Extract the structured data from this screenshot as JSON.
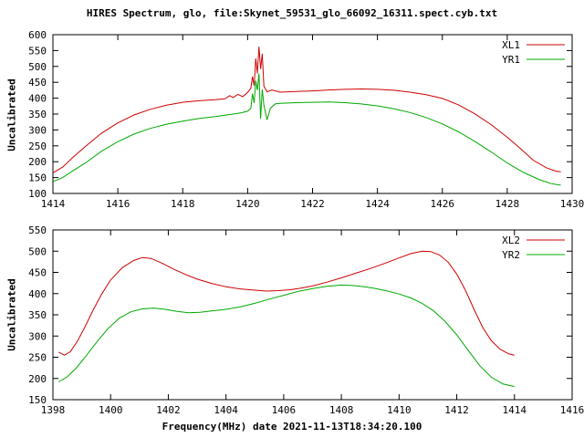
{
  "title": "HIRES Spectrum, glo, file:Skynet_59531_glo_66092_16311.spect.cyb.txt",
  "xlabel": "Frequency(MHz) date 2021-11-13T18:34:20.100",
  "colors": {
    "axis": "#000000",
    "xl": "#cc0000",
    "yr": "#00a800",
    "background": "#ffffff"
  },
  "chart_data": [
    {
      "type": "line",
      "title": "",
      "ylabel": "Uncalibrated",
      "xlim": [
        1414,
        1430
      ],
      "xtick_step": 2,
      "ylim": [
        100,
        600
      ],
      "ytick_step": 50,
      "grid": false,
      "legend_position": "top-right",
      "series": [
        {
          "name": "XL1",
          "color": "#cc0000",
          "points": [
            [
              1414.0,
              165
            ],
            [
              1414.3,
              183
            ],
            [
              1414.6,
              212
            ],
            [
              1415.0,
              248
            ],
            [
              1415.5,
              290
            ],
            [
              1416.0,
              322
            ],
            [
              1416.5,
              347
            ],
            [
              1417.0,
              365
            ],
            [
              1417.5,
              378
            ],
            [
              1418.0,
              387
            ],
            [
              1418.5,
              392
            ],
            [
              1419.0,
              395
            ],
            [
              1419.3,
              398
            ],
            [
              1419.45,
              408
            ],
            [
              1419.55,
              402
            ],
            [
              1419.7,
              412
            ],
            [
              1419.85,
              405
            ],
            [
              1420.0,
              418
            ],
            [
              1420.1,
              432
            ],
            [
              1420.15,
              468
            ],
            [
              1420.2,
              440
            ],
            [
              1420.25,
              525
            ],
            [
              1420.3,
              478
            ],
            [
              1420.35,
              562
            ],
            [
              1420.4,
              492
            ],
            [
              1420.45,
              540
            ],
            [
              1420.5,
              438
            ],
            [
              1420.6,
              420
            ],
            [
              1420.75,
              426
            ],
            [
              1421.0,
              419
            ],
            [
              1421.5,
              421
            ],
            [
              1422.0,
              423
            ],
            [
              1422.5,
              426
            ],
            [
              1423.0,
              428
            ],
            [
              1423.5,
              429
            ],
            [
              1424.0,
              428
            ],
            [
              1424.5,
              425
            ],
            [
              1425.0,
              419
            ],
            [
              1425.5,
              411
            ],
            [
              1426.0,
              399
            ],
            [
              1426.5,
              379
            ],
            [
              1427.0,
              351
            ],
            [
              1427.5,
              317
            ],
            [
              1428.0,
              277
            ],
            [
              1428.4,
              242
            ],
            [
              1428.8,
              205
            ],
            [
              1429.2,
              181
            ],
            [
              1429.5,
              170
            ],
            [
              1429.65,
              168
            ]
          ]
        },
        {
          "name": "YR1",
          "color": "#00a800",
          "points": [
            [
              1414.0,
              137
            ],
            [
              1414.3,
              150
            ],
            [
              1414.6,
              170
            ],
            [
              1415.0,
              196
            ],
            [
              1415.5,
              233
            ],
            [
              1416.0,
              263
            ],
            [
              1416.5,
              287
            ],
            [
              1417.0,
              305
            ],
            [
              1417.5,
              318
            ],
            [
              1418.0,
              328
            ],
            [
              1418.5,
              336
            ],
            [
              1419.0,
              342
            ],
            [
              1419.5,
              349
            ],
            [
              1419.8,
              354
            ],
            [
              1420.0,
              359
            ],
            [
              1420.1,
              368
            ],
            [
              1420.15,
              415
            ],
            [
              1420.2,
              385
            ],
            [
              1420.25,
              455
            ],
            [
              1420.3,
              425
            ],
            [
              1420.35,
              478
            ],
            [
              1420.4,
              335
            ],
            [
              1420.45,
              428
            ],
            [
              1420.5,
              378
            ],
            [
              1420.6,
              332
            ],
            [
              1420.7,
              368
            ],
            [
              1420.85,
              382
            ],
            [
              1421.0,
              384
            ],
            [
              1421.5,
              386
            ],
            [
              1422.0,
              387
            ],
            [
              1422.5,
              388
            ],
            [
              1423.0,
              386
            ],
            [
              1423.5,
              382
            ],
            [
              1424.0,
              376
            ],
            [
              1424.5,
              367
            ],
            [
              1425.0,
              355
            ],
            [
              1425.5,
              339
            ],
            [
              1426.0,
              319
            ],
            [
              1426.5,
              294
            ],
            [
              1427.0,
              264
            ],
            [
              1427.5,
              231
            ],
            [
              1428.0,
              196
            ],
            [
              1428.5,
              166
            ],
            [
              1429.0,
              143
            ],
            [
              1429.35,
              131
            ],
            [
              1429.65,
              126
            ]
          ]
        }
      ]
    },
    {
      "type": "line",
      "title": "",
      "ylabel": "Uncalibrated",
      "xlim": [
        1398,
        1416
      ],
      "xtick_step": 2,
      "ylim": [
        150,
        550
      ],
      "ytick_step": 50,
      "grid": false,
      "legend_position": "top-right",
      "series": [
        {
          "name": "XL2",
          "color": "#cc0000",
          "points": [
            [
              1398.2,
              262
            ],
            [
              1398.4,
              255
            ],
            [
              1398.6,
              263
            ],
            [
              1398.85,
              288
            ],
            [
              1399.1,
              320
            ],
            [
              1399.4,
              362
            ],
            [
              1399.7,
              400
            ],
            [
              1400.0,
              432
            ],
            [
              1400.4,
              461
            ],
            [
              1400.8,
              478
            ],
            [
              1401.1,
              485
            ],
            [
              1401.4,
              483
            ],
            [
              1401.8,
              471
            ],
            [
              1402.2,
              457
            ],
            [
              1402.6,
              445
            ],
            [
              1403.0,
              434
            ],
            [
              1403.5,
              424
            ],
            [
              1404.0,
              416
            ],
            [
              1404.5,
              411
            ],
            [
              1405.0,
              408
            ],
            [
              1405.4,
              406
            ],
            [
              1405.8,
              407
            ],
            [
              1406.2,
              409
            ],
            [
              1406.6,
              413
            ],
            [
              1407.0,
              418
            ],
            [
              1407.5,
              427
            ],
            [
              1408.0,
              437
            ],
            [
              1408.5,
              448
            ],
            [
              1409.0,
              459
            ],
            [
              1409.5,
              471
            ],
            [
              1410.0,
              484
            ],
            [
              1410.4,
              494
            ],
            [
              1410.8,
              500
            ],
            [
              1411.1,
              499
            ],
            [
              1411.4,
              491
            ],
            [
              1411.7,
              474
            ],
            [
              1412.0,
              446
            ],
            [
              1412.3,
              408
            ],
            [
              1412.6,
              363
            ],
            [
              1412.9,
              320
            ],
            [
              1413.2,
              289
            ],
            [
              1413.5,
              269
            ],
            [
              1413.8,
              258
            ],
            [
              1414.0,
              255
            ]
          ]
        },
        {
          "name": "YR2",
          "color": "#00a800",
          "points": [
            [
              1398.2,
              192
            ],
            [
              1398.5,
              204
            ],
            [
              1398.8,
              224
            ],
            [
              1399.1,
              249
            ],
            [
              1399.5,
              284
            ],
            [
              1399.9,
              317
            ],
            [
              1400.3,
              342
            ],
            [
              1400.7,
              357
            ],
            [
              1401.1,
              364
            ],
            [
              1401.5,
              366
            ],
            [
              1401.9,
              363
            ],
            [
              1402.3,
              358
            ],
            [
              1402.7,
              355
            ],
            [
              1403.1,
              356
            ],
            [
              1403.5,
              359
            ],
            [
              1404.0,
              363
            ],
            [
              1404.5,
              369
            ],
            [
              1405.0,
              377
            ],
            [
              1405.5,
              387
            ],
            [
              1406.0,
              396
            ],
            [
              1406.5,
              405
            ],
            [
              1407.0,
              412
            ],
            [
              1407.5,
              417
            ],
            [
              1408.0,
              420
            ],
            [
              1408.4,
              419
            ],
            [
              1408.8,
              416
            ],
            [
              1409.2,
              412
            ],
            [
              1409.6,
              406
            ],
            [
              1410.0,
              399
            ],
            [
              1410.4,
              390
            ],
            [
              1410.8,
              377
            ],
            [
              1411.2,
              359
            ],
            [
              1411.6,
              334
            ],
            [
              1412.0,
              303
            ],
            [
              1412.4,
              266
            ],
            [
              1412.8,
              230
            ],
            [
              1413.2,
              203
            ],
            [
              1413.6,
              187
            ],
            [
              1414.0,
              181
            ]
          ]
        }
      ]
    }
  ]
}
